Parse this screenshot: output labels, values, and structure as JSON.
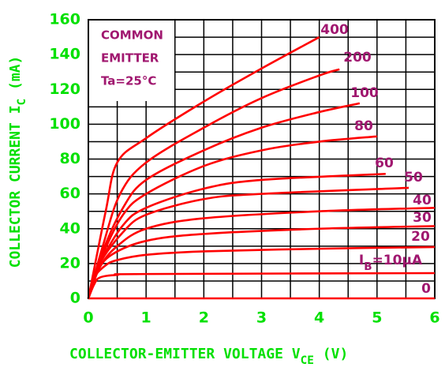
{
  "chart_data": {
    "type": "line",
    "x_label": [
      {
        "text": "COLLECTOR-EMITTER VOLTAGE V"
      },
      {
        "text": "CE",
        "sub": true
      },
      {
        "text": "  (V)"
      }
    ],
    "y_label": [
      {
        "text": "COLLECTOR CURRENT I"
      },
      {
        "text": "C",
        "sub": true
      },
      {
        "text": "  (mA)"
      }
    ],
    "annotation": [
      "COMMON",
      "EMITTER",
      "Ta=25°C"
    ],
    "xlim": [
      0,
      6
    ],
    "ylim": [
      0,
      160
    ],
    "xticks": [
      0,
      1,
      2,
      3,
      4,
      5,
      6
    ],
    "yticks": [
      0,
      20,
      40,
      60,
      80,
      100,
      120,
      140,
      160
    ],
    "xgrid_minor": [
      0.5,
      1.5,
      2.5,
      3.5,
      4.5,
      5.5
    ],
    "ygrid_minor": [
      10,
      30,
      50,
      70,
      90,
      110,
      130,
      150
    ],
    "grid": true,
    "line_color": "#ff0000",
    "series": [
      {
        "name": "0",
        "x": [
          0,
          6
        ],
        "values": [
          0,
          0
        ]
      },
      {
        "name": [
          {
            "text": "I"
          },
          {
            "text": "B",
            "sub": true
          },
          {
            "text": "=10μA"
          }
        ],
        "x": [
          0,
          0.1,
          0.2,
          0.5,
          1,
          6
        ],
        "values": [
          0,
          8,
          12,
          13.5,
          14,
          14.5
        ]
      },
      {
        "name": "20",
        "x": [
          0,
          0.1,
          0.3,
          0.5,
          1,
          2,
          4,
          6
        ],
        "values": [
          0,
          12,
          19,
          22,
          25,
          27,
          28.5,
          29.5
        ]
      },
      {
        "name": "30",
        "x": [
          0,
          0.15,
          0.4,
          1,
          2,
          4,
          6
        ],
        "values": [
          0,
          15,
          25,
          33,
          37,
          40,
          41.5
        ]
      },
      {
        "name": "40",
        "x": [
          0,
          0.2,
          0.5,
          1,
          2,
          4,
          6
        ],
        "values": [
          0,
          18,
          30,
          40,
          46,
          50,
          52
        ]
      },
      {
        "name": "50",
        "x": [
          0,
          0.2,
          0.6,
          1,
          2,
          3,
          5.55
        ],
        "values": [
          0,
          20,
          38,
          48,
          57,
          60,
          63.5
        ]
      },
      {
        "name": "60",
        "x": [
          0,
          0.2,
          0.6,
          1,
          2,
          3,
          5.15
        ],
        "values": [
          0,
          20,
          42,
          52,
          63,
          68,
          71.5
        ]
      },
      {
        "name": "80",
        "x": [
          0,
          0.25,
          0.6,
          1,
          2,
          3,
          4,
          5
        ],
        "values": [
          0,
          25,
          48,
          60,
          76,
          85,
          90,
          93
        ]
      },
      {
        "name": "100",
        "x": [
          0,
          0.25,
          0.6,
          1,
          2,
          3,
          4,
          4.7
        ],
        "values": [
          0,
          27,
          52,
          68,
          85,
          98,
          107,
          112
        ]
      },
      {
        "name": "200",
        "x": [
          0,
          0.25,
          0.55,
          1,
          2,
          3,
          4,
          4.35
        ],
        "values": [
          0,
          30,
          60,
          78,
          98,
          115,
          128,
          131.5
        ]
      },
      {
        "name": "400",
        "x": [
          0,
          0.3,
          0.5,
          1,
          2,
          3,
          4
        ],
        "values": [
          0,
          50,
          78,
          92,
          113,
          132,
          150
        ]
      }
    ]
  }
}
